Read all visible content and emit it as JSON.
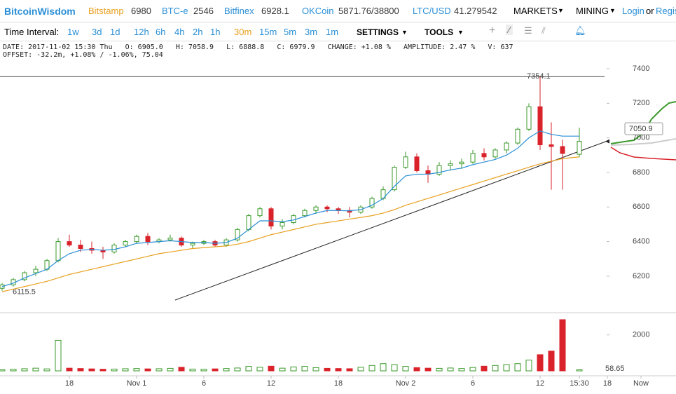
{
  "header": {
    "brand": "BitcoinWisdom",
    "exchanges": [
      {
        "name": "Bitstamp",
        "price": "6980"
      },
      {
        "name": "BTC-e",
        "price": "2546"
      },
      {
        "name": "Bitfinex",
        "price": "6928.1"
      },
      {
        "name": "OKCoin",
        "price": "5871.76/38800"
      },
      {
        "name": "LTC/USD",
        "price": "41.279542"
      }
    ],
    "menus": [
      "MARKETS",
      "MINING"
    ],
    "login": "Login",
    "or": "or",
    "register": "Regis"
  },
  "toolbar": {
    "label": "Time Interval:",
    "intervals": [
      "1w",
      "3d",
      "1d",
      "12h",
      "6h",
      "4h",
      "2h",
      "1h",
      "30m",
      "15m",
      "5m",
      "3m",
      "1m"
    ],
    "active": "30m",
    "settings": "SETTINGS",
    "tools": "TOOLS"
  },
  "info": {
    "line1": [
      "DATE: 2017-11-02 15:30 Thu",
      "O: 6905.0",
      "H: 7058.9",
      "L: 6888.8",
      "C: 6979.9",
      "CHANGE: +1.08 %",
      "AMPLITUDE: 2.47 %",
      "V: 637"
    ],
    "line2": "OFFSET: -32.2m, +1.08% / -1.06%, 75.04"
  },
  "chart_data": {
    "type": "candlestick",
    "x": [
      0,
      2,
      4,
      6,
      8,
      10,
      12,
      14,
      16,
      18,
      20,
      22,
      24,
      26,
      28,
      30,
      32,
      34,
      36,
      38,
      40,
      42,
      44,
      46,
      48,
      50,
      52,
      54,
      56,
      58,
      60,
      62,
      64,
      66,
      68,
      70,
      72,
      74,
      76,
      78,
      80,
      82,
      84,
      86,
      88,
      90,
      92,
      94,
      96,
      98,
      100,
      103
    ],
    "open": [
      6130,
      6150,
      6180,
      6220,
      6240,
      6290,
      6400,
      6380,
      6360,
      6350,
      6340,
      6380,
      6400,
      6430,
      6400,
      6410,
      6420,
      6380,
      6390,
      6400,
      6380,
      6410,
      6470,
      6550,
      6590,
      6490,
      6510,
      6550,
      6580,
      6600,
      6590,
      6580,
      6570,
      6600,
      6650,
      6700,
      6830,
      6890,
      6810,
      6790,
      6840,
      6850,
      6860,
      6910,
      6890,
      6930,
      6970,
      7050,
      7180,
      6960,
      6950,
      6905
    ],
    "high": [
      6160,
      6190,
      6230,
      6260,
      6300,
      6420,
      6440,
      6410,
      6400,
      6370,
      6390,
      6410,
      6440,
      6450,
      6420,
      6440,
      6430,
      6400,
      6410,
      6410,
      6420,
      6480,
      6560,
      6600,
      6600,
      6530,
      6560,
      6590,
      6610,
      6610,
      6600,
      6600,
      6610,
      6660,
      6720,
      6840,
      6920,
      6910,
      6840,
      6860,
      6870,
      6880,
      6930,
      6940,
      6940,
      6980,
      7060,
      7200,
      7354.1,
      7090,
      6990,
      7058.9
    ],
    "low": [
      6115.5,
      6140,
      6170,
      6200,
      6230,
      6280,
      6370,
      6340,
      6330,
      6300,
      6330,
      6370,
      6390,
      6380,
      6390,
      6400,
      6370,
      6360,
      6380,
      6370,
      6370,
      6400,
      6460,
      6540,
      6470,
      6470,
      6500,
      6540,
      6560,
      6570,
      6560,
      6540,
      6560,
      6590,
      6640,
      6690,
      6820,
      6800,
      6740,
      6780,
      6810,
      6820,
      6850,
      6870,
      6880,
      6910,
      6960,
      7040,
      6930,
      6700,
      6700,
      6888.8
    ],
    "close": [
      6150,
      6180,
      6220,
      6240,
      6290,
      6400,
      6380,
      6360,
      6350,
      6340,
      6380,
      6400,
      6430,
      6400,
      6410,
      6420,
      6380,
      6390,
      6400,
      6380,
      6410,
      6470,
      6550,
      6590,
      6490,
      6510,
      6550,
      6580,
      6600,
      6590,
      6580,
      6570,
      6600,
      6650,
      6700,
      6830,
      6890,
      6810,
      6790,
      6840,
      6850,
      6860,
      6910,
      6890,
      6930,
      6970,
      7050,
      7180,
      6960,
      6950,
      6910,
      6979.9
    ],
    "volume": [
      60,
      90,
      120,
      150,
      110,
      1700,
      150,
      130,
      110,
      90,
      100,
      120,
      130,
      110,
      120,
      140,
      200,
      100,
      90,
      110,
      130,
      160,
      250,
      200,
      260,
      150,
      220,
      250,
      180,
      140,
      130,
      120,
      200,
      300,
      400,
      350,
      250,
      180,
      150,
      140,
      160,
      130,
      190,
      260,
      300,
      350,
      400,
      600,
      900,
      1100,
      2850,
      58.65
    ],
    "lines": [
      {
        "color": "#2a8fd6",
        "values": [
          6140,
          6160,
          6190,
          6215,
          6240,
          6290,
          6330,
          6350,
          6355,
          6350,
          6355,
          6370,
          6390,
          6395,
          6400,
          6405,
          6400,
          6395,
          6395,
          6390,
          6395,
          6420,
          6470,
          6520,
          6520,
          6515,
          6525,
          6545,
          6565,
          6580,
          6580,
          6578,
          6585,
          6610,
          6650,
          6720,
          6780,
          6790,
          6790,
          6800,
          6815,
          6825,
          6845,
          6860,
          6875,
          6900,
          6940,
          7000,
          7040,
          7020,
          7010,
          7010
        ]
      },
      {
        "color": "#e8a020",
        "values": [
          6110,
          6125,
          6140,
          6155,
          6170,
          6190,
          6210,
          6225,
          6240,
          6255,
          6270,
          6285,
          6300,
          6315,
          6330,
          6340,
          6350,
          6360,
          6365,
          6370,
          6375,
          6385,
          6400,
          6420,
          6440,
          6455,
          6470,
          6485,
          6500,
          6510,
          6520,
          6530,
          6540,
          6550,
          6565,
          6585,
          6610,
          6630,
          6650,
          6670,
          6690,
          6710,
          6730,
          6750,
          6770,
          6790,
          6810,
          6830,
          6850,
          6865,
          6880,
          6890
        ]
      }
    ],
    "up_color": "#3a9a2a",
    "down_color": "#d9222a",
    "xlim": [
      0,
      120
    ],
    "xticks": [
      {
        "value": 12,
        "label": "18"
      },
      {
        "value": 24,
        "label": "Nov 1"
      },
      {
        "value": 36,
        "label": "6"
      },
      {
        "value": 48,
        "label": "12"
      },
      {
        "value": 60,
        "label": "18"
      },
      {
        "value": 72,
        "label": "Nov 2"
      },
      {
        "value": 84,
        "label": "6"
      },
      {
        "value": 96,
        "label": "12"
      },
      {
        "value": 103,
        "label": "15:30"
      },
      {
        "value": 108,
        "label": "18"
      },
      {
        "value": 114,
        "label": "Now"
      }
    ],
    "ylim": [
      5993,
      7546
    ],
    "yticks": [
      6200,
      6400,
      6600,
      6800,
      7000,
      7200,
      7400
    ],
    "y2lim": [
      0,
      3200
    ],
    "y2ticks": [
      2000
    ],
    "annotations": {
      "high": "7354.1",
      "high_value": 7354.1,
      "low": "6115.5",
      "low_value": 6115.5,
      "price": "7050.9",
      "price_value": 7050.9,
      "volume": "58.65"
    }
  }
}
